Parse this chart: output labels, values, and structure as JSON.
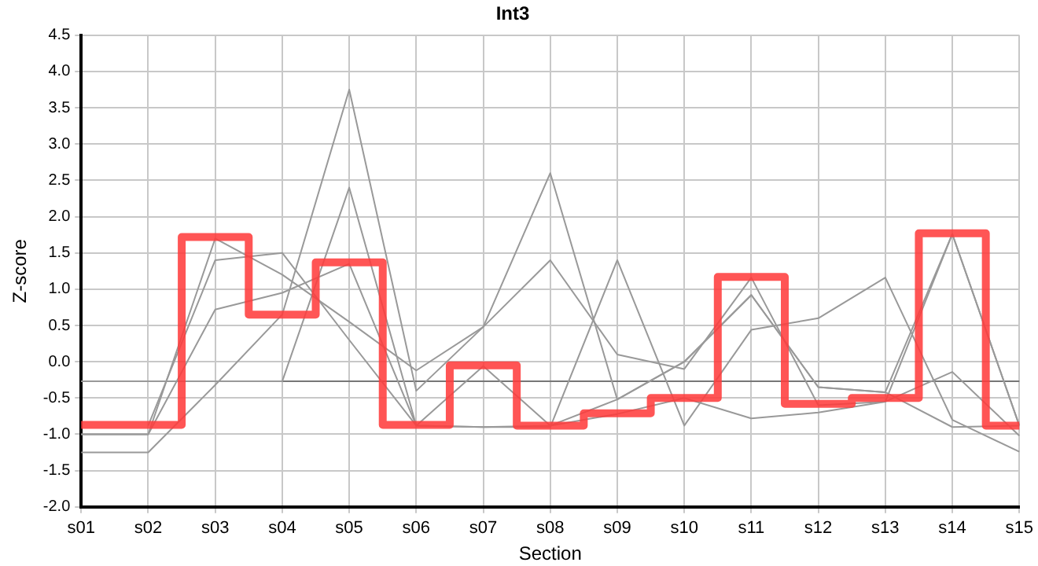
{
  "chart_data": {
    "type": "line",
    "title": "Int3",
    "xlabel": "Section",
    "ylabel": "Z-score",
    "categories": [
      "s01",
      "s02",
      "s03",
      "s04",
      "s05",
      "s06",
      "s07",
      "s08",
      "s09",
      "s10",
      "s11",
      "s12",
      "s13",
      "s14",
      "s15"
    ],
    "ylim": [
      -2,
      4.5
    ],
    "yticks": [
      {
        "value": -2,
        "label": "-2.0"
      },
      {
        "value": -1.5,
        "label": "-1.5"
      },
      {
        "value": -1,
        "label": "-1.0"
      },
      {
        "value": -0.5,
        "label": "-0.5"
      },
      {
        "value": 0,
        "label": "0.0"
      },
      {
        "value": 0.5,
        "label": "0.5"
      },
      {
        "value": 1,
        "label": "1.0"
      },
      {
        "value": 1.5,
        "label": "1.5"
      },
      {
        "value": 2,
        "label": "2.0"
      },
      {
        "value": 2.5,
        "label": "2.5"
      },
      {
        "value": 3,
        "label": "3.0"
      },
      {
        "value": 3.5,
        "label": "3.5"
      },
      {
        "value": 4,
        "label": "4.0"
      },
      {
        "value": 4.5,
        "label": "4.5"
      }
    ],
    "grid": true,
    "legend": false,
    "marker": "none",
    "ref_lines": [
      {
        "axis": "y",
        "value": -0.27,
        "color": "#777777"
      }
    ],
    "series": [
      {
        "color": "#999999",
        "values": [
          -1.25,
          -1.25,
          -0.32,
          0.65,
          3.75,
          -0.4,
          0.48,
          2.6,
          -0.52,
          0.0,
          0.92,
          -0.35,
          -0.42,
          1.76,
          -0.88
        ]
      },
      {
        "color": "#999999",
        "values": [
          -1.0,
          -1.0,
          1.7,
          1.2,
          0.55,
          -0.12,
          0.48,
          1.4,
          0.1,
          -0.1,
          1.16,
          -0.6,
          -0.55,
          -0.14,
          -1.02
        ]
      },
      {
        "color": "#999999",
        "values": [
          null,
          -0.88,
          1.4,
          1.5,
          0.3,
          -0.88,
          -0.9,
          -0.9,
          1.4,
          -0.88,
          0.44,
          0.6,
          1.16,
          -0.8,
          -1.24
        ]
      },
      {
        "color": "#999999",
        "values": [
          -0.27,
          -0.27,
          -0.27,
          -0.27,
          2.4,
          -0.88,
          -0.06,
          -0.88,
          -0.72,
          -0.5,
          -0.78,
          -0.7,
          -0.55,
          1.76,
          -0.88
        ]
      },
      {
        "color": "#999999",
        "values": [
          -1.0,
          -1.0,
          0.72,
          0.95,
          1.35,
          -0.88,
          -0.9,
          -0.88,
          -0.52,
          0.0,
          0.92,
          -0.35,
          -0.42,
          -0.9,
          -0.88
        ]
      },
      {
        "type": "step",
        "color": "#ff3b3b",
        "values": [
          -0.87,
          -0.87,
          1.72,
          0.65,
          1.37,
          -0.87,
          -0.05,
          -0.88,
          -0.71,
          -0.5,
          1.17,
          -0.58,
          -0.5,
          1.77,
          -0.88
        ]
      }
    ]
  }
}
